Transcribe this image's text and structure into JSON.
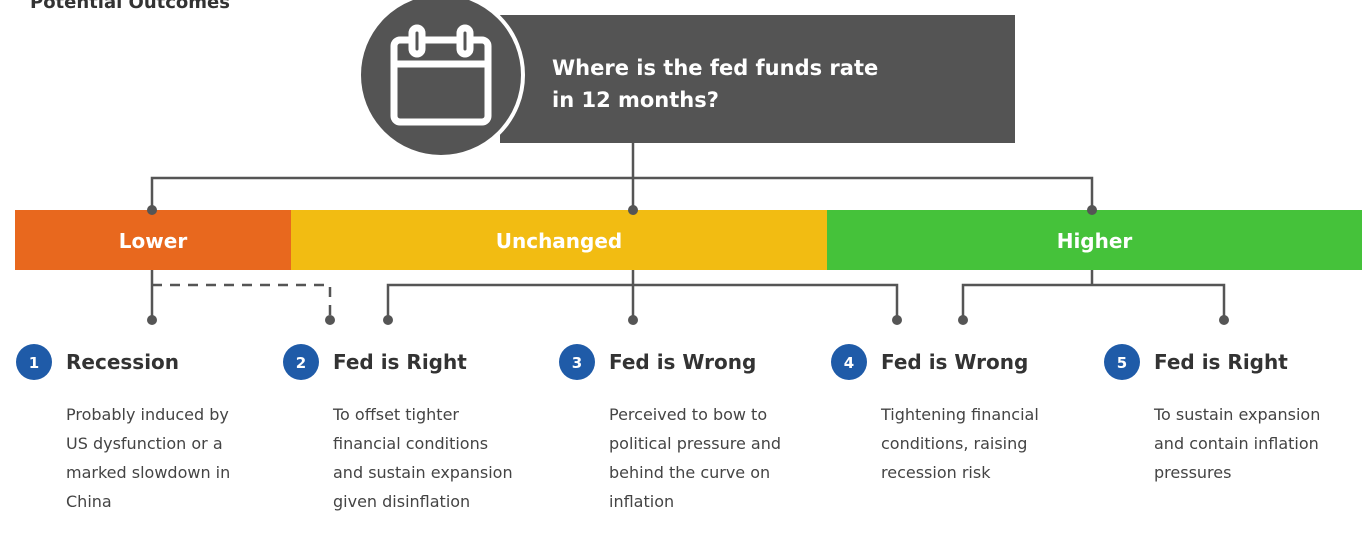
{
  "title": "Potential Outcomes",
  "question": [
    "Where is the fed funds rate",
    "in 12 months?"
  ],
  "outcomes": [
    {
      "label": "Lower",
      "color": "#e8681e"
    },
    {
      "label": "Unchanged",
      "color": "#f2bc12"
    },
    {
      "label": "Higher",
      "color": "#45c23a"
    }
  ],
  "scenarios": [
    {
      "number": "1",
      "title": "Recession",
      "description": [
        "Probably induced by",
        "US dysfunction or a",
        "marked slowdown in",
        "China"
      ]
    },
    {
      "number": "2",
      "title": "Fed is Right",
      "description": [
        "To offset tighter",
        "financial conditions",
        "and sustain expansion",
        "given disinflation"
      ]
    },
    {
      "number": "3",
      "title": "Fed is Wrong",
      "description": [
        "Perceived to bow to",
        "political pressure and",
        "behind the curve on",
        "inflation"
      ]
    },
    {
      "number": "4",
      "title": "Fed is Wrong",
      "description": [
        "Tightening financial",
        "conditions, raising",
        "recession risk"
      ]
    },
    {
      "number": "5",
      "title": "Fed is Right",
      "description": [
        "To sustain expansion",
        "and contain inflation",
        "pressures"
      ]
    }
  ]
}
